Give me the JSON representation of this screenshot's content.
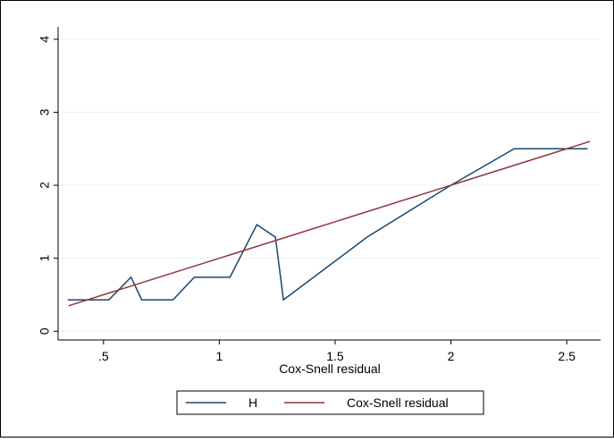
{
  "chart_data": {
    "type": "line",
    "x_label": "Cox-Snell residual",
    "series": [
      {
        "name": "H",
        "color": "#1a476f",
        "x": [
          0.346,
          0.523,
          0.619,
          0.665,
          0.8,
          0.892,
          1.046,
          1.162,
          1.242,
          1.277,
          1.638,
          2.0,
          2.273,
          2.59
        ],
        "values": [
          0.43,
          0.43,
          0.74,
          0.43,
          0.43,
          0.74,
          0.74,
          1.46,
          1.29,
          0.43,
          1.29,
          2.0,
          2.5,
          2.5
        ]
      },
      {
        "name": "Cox-Snell residual",
        "color": "#90353b",
        "x": [
          0.35,
          2.6
        ],
        "values": [
          0.35,
          2.6
        ]
      }
    ],
    "xlim": [
      0.304,
      2.646
    ],
    "ylim": [
      -0.12,
      4.17
    ],
    "xticks": [
      {
        "value": 0.5,
        "label": ".5"
      },
      1,
      1.5,
      2,
      2.5
    ],
    "yticks": [
      0,
      1,
      2,
      3,
      4
    ],
    "grid": true,
    "legend": "bottom"
  }
}
